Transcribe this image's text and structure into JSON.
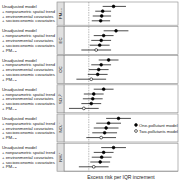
{
  "chart_data": {
    "type": "forest",
    "xlabel": "Excess risk per IQR increment",
    "xlim": [
      -5,
      18
    ],
    "reference_line": 0,
    "tick_labels": false,
    "series": [
      {
        "name": "One-pollutant model",
        "marker": "filled"
      },
      {
        "name": "Two-pollutants model",
        "marker": "open"
      }
    ],
    "panels": [
      {
        "label": "PM₂.₅",
        "categories": [
          "Unadjusted model",
          "+ nonparametric spatial trend",
          "+ environmental covariates",
          "+ socioeconomic covariates"
        ],
        "values": [
          5,
          2.8,
          2.6,
          2.4
        ],
        "lower": [
          2.8,
          1.3,
          0.8,
          0.6
        ],
        "upper": [
          7.5,
          4.5,
          4.5,
          4.3
        ],
        "series_index": [
          0,
          0,
          0,
          0
        ]
      },
      {
        "label": "EC",
        "categories": [
          "Unadjusted model",
          "+ nonparametric spatial trend",
          "+ environmental covariates",
          "+ socioeconomic covariates",
          "+ PM₂.₅"
        ],
        "values": [
          5.5,
          3,
          2.5,
          2.2,
          1.5
        ],
        "lower": [
          3,
          1,
          0.5,
          0.2,
          -1.5
        ],
        "upper": [
          8,
          5,
          4.5,
          4.2,
          4.5
        ],
        "series_index": [
          0,
          0,
          0,
          0,
          1
        ]
      },
      {
        "label": "OC",
        "categories": [
          "Unadjusted model",
          "+ nonparametric spatial trend",
          "+ environmental covariates",
          "+ socioeconomic covariates",
          "+ PM₂.₅"
        ],
        "values": [
          4,
          2.5,
          2,
          1.8,
          0.5
        ],
        "lower": [
          2,
          0.5,
          0,
          -0.2,
          -2.5
        ],
        "upper": [
          6,
          4.5,
          4,
          3.8,
          3.5
        ],
        "series_index": [
          0,
          0,
          0,
          0,
          1
        ]
      },
      {
        "label": "SO₄²⁻",
        "categories": [
          "Unadjusted model",
          "+ nonparametric spatial trend",
          "+ environmental covariates",
          "+ socioeconomic covariates",
          "+ PM₂.₅"
        ],
        "values": [
          3,
          1,
          0.8,
          0.5,
          -1
        ],
        "lower": [
          1,
          -1,
          -1.2,
          -1.5,
          -4
        ],
        "upper": [
          5,
          3,
          2.8,
          2.5,
          2
        ],
        "series_index": [
          0,
          0,
          0,
          0,
          1
        ]
      },
      {
        "label": "NO₃⁻",
        "categories": [
          "Unadjusted model",
          "+ nonparametric spatial trend",
          "+ environmental covariates",
          "+ socioeconomic covariates",
          "+ PM₂.₅"
        ],
        "values": [
          6,
          4,
          3.5,
          3.2,
          2.5
        ],
        "lower": [
          3.5,
          1.5,
          1,
          0.7,
          -0.5
        ],
        "upper": [
          8.5,
          6.5,
          6,
          5.7,
          5.5
        ],
        "series_index": [
          0,
          0,
          0,
          0,
          1
        ]
      },
      {
        "label": "NH₄⁺",
        "categories": [
          "Unadjusted model",
          "+ nonparametric spatial trend",
          "+ environmental covariates",
          "+ socioeconomic covariates",
          "+ PM₂.₅"
        ],
        "values": [
          5,
          3,
          2.6,
          2.3,
          1
        ],
        "lower": [
          2.5,
          1,
          0.6,
          0.3,
          -2
        ],
        "upper": [
          7.5,
          5,
          4.6,
          4.3,
          4
        ],
        "series_index": [
          0,
          0,
          0,
          0,
          1
        ]
      }
    ]
  }
}
